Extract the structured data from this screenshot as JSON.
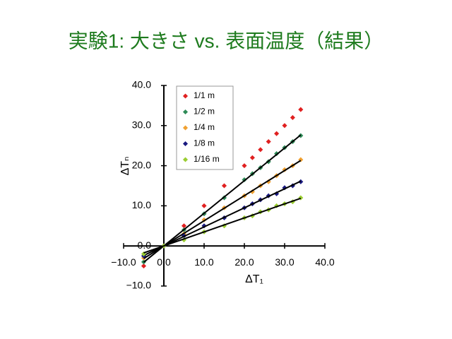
{
  "chart_data": {
    "type": "scatter",
    "title": "実験1: 大きさ vs. 表面温度（結果）",
    "x_label": "ΔT₁",
    "y_label": "ΔTₙ",
    "x": [
      -5,
      0,
      5,
      10,
      15,
      20,
      22,
      24,
      26,
      28,
      30,
      32,
      34
    ],
    "series": [
      {
        "name": "1/1 m",
        "color": "#e02020",
        "values": [
          -5,
          0,
          5,
          10,
          15,
          20,
          22,
          24,
          26,
          28,
          30,
          32,
          34
        ],
        "trendline": false
      },
      {
        "name": "1/2 m",
        "color": "#2e8b57",
        "values": [
          -4,
          0,
          4,
          8,
          12,
          16.5,
          18,
          19.5,
          21,
          23,
          24.5,
          26,
          27.5
        ],
        "trendline": true
      },
      {
        "name": "1/4 m",
        "color": "#f0a030",
        "values": [
          -3,
          0,
          3,
          6.5,
          9.5,
          12.5,
          13.5,
          15,
          16,
          17.5,
          19,
          20,
          21.5
        ],
        "trendline": true
      },
      {
        "name": "1/8 m",
        "color": "#1a1a80",
        "values": [
          -2.5,
          0,
          2.5,
          5,
          7,
          9.5,
          10.5,
          11.5,
          12.5,
          13,
          14.5,
          15,
          16
        ],
        "trendline": true
      },
      {
        "name": "1/16 m",
        "color": "#9acd32",
        "values": [
          -2,
          0,
          1.5,
          3.5,
          5,
          7,
          7.5,
          8.5,
          9,
          10,
          10.5,
          11,
          12
        ],
        "trendline": true
      }
    ],
    "trendline_color": "#000000",
    "xlim": [
      -10,
      40
    ],
    "ylim": [
      -10,
      40
    ],
    "xticks": [
      {
        "value": -10,
        "label": "−10.0"
      },
      {
        "value": 0,
        "label": "0.0"
      },
      {
        "value": 10,
        "label": "10.0"
      },
      {
        "value": 20,
        "label": "20.0"
      },
      {
        "value": 30,
        "label": "30.0"
      },
      {
        "value": 40,
        "label": "40.0"
      }
    ],
    "yticks": [
      {
        "value": -10,
        "label": "−10.0"
      },
      {
        "value": 0,
        "label": "0.0"
      },
      {
        "value": 10,
        "label": "10.0"
      },
      {
        "value": 20,
        "label": "20.0"
      },
      {
        "value": 30,
        "label": "30.0"
      },
      {
        "value": 40,
        "label": "40.0"
      }
    ],
    "legend": "upper-left"
  }
}
